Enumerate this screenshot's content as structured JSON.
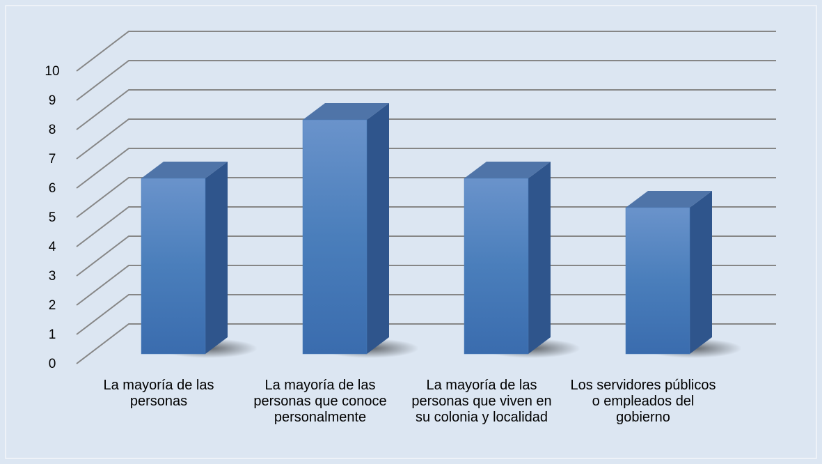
{
  "chart_data": {
    "type": "bar3d",
    "categories": [
      "La mayoría de las personas",
      "La mayoría de las personas que conoce personalmente",
      "La mayoría de las personas que viven en su colonia y localidad",
      "Los servidores públicos o empleados del gobierno"
    ],
    "values": [
      6,
      8,
      6,
      5
    ],
    "color": "#4a7ebb",
    "ylim": [
      0,
      10
    ],
    "yticks": [
      0,
      1,
      2,
      3,
      4,
      5,
      6,
      7,
      8,
      9,
      10
    ],
    "grid": true
  }
}
